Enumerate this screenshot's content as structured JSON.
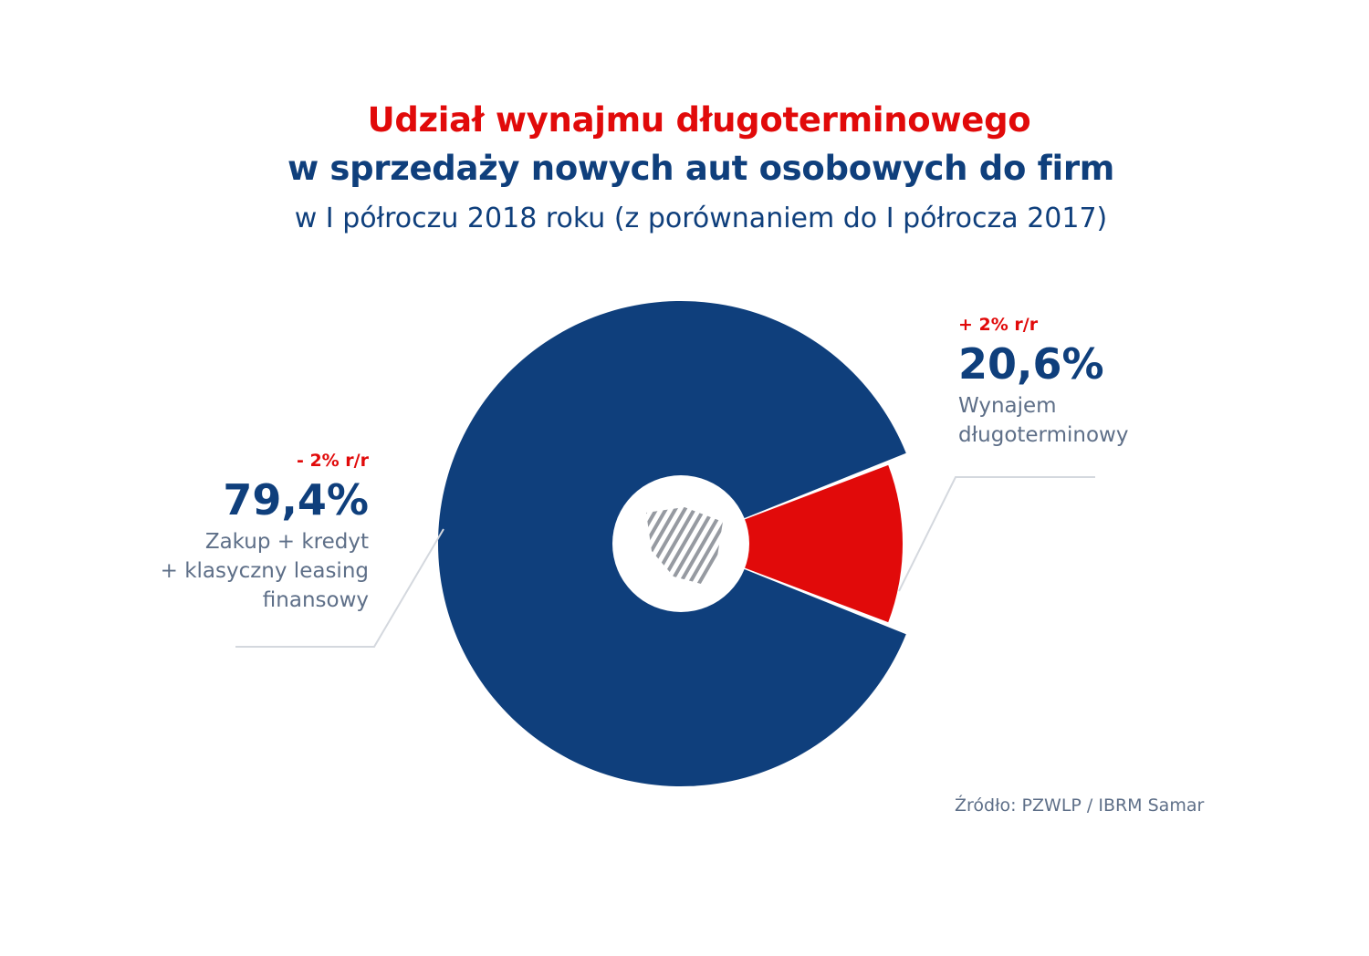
{
  "title": {
    "line1": "Udział wynajmu długoterminowego",
    "line2": "w sprzedaży nowych aut osobowych do firm",
    "subtitle": "w I półroczu 2018 roku (z porównaniem do I półrocza 2017)"
  },
  "chart_data": {
    "type": "pie",
    "variant": "donut",
    "slices": [
      {
        "label_lines": [
          "Wynajem",
          "długoterminowy"
        ],
        "value": 20.6,
        "value_label": "20,6%",
        "change_label": "+ 2% r/r",
        "color": "#e10a0a"
      },
      {
        "label_lines": [
          "Zakup + kredyt",
          "+ klasyczny leasing",
          "finansowy"
        ],
        "value": 79.4,
        "value_label": "79,4%",
        "change_label": "- 2% r/r",
        "color": "#0f3f7c"
      }
    ]
  },
  "source": "Źródło: PZWLP / IBRM Samar",
  "colors": {
    "accent_red": "#e10a0a",
    "navy": "#0f3f7c",
    "muted_text": "#5e6f88"
  }
}
